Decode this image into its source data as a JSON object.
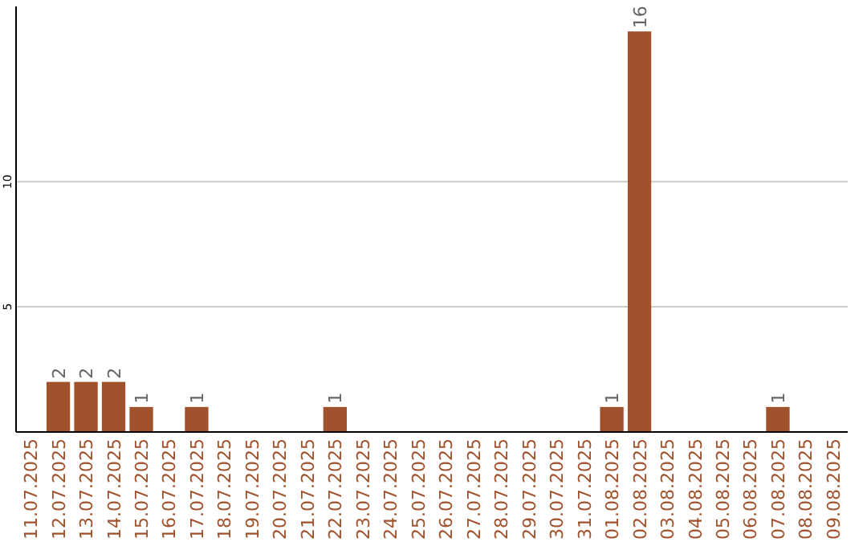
{
  "chart_data": {
    "type": "bar",
    "categories": [
      "11.07.2025",
      "12.07.2025",
      "13.07.2025",
      "14.07.2025",
      "15.07.2025",
      "16.07.2025",
      "17.07.2025",
      "18.07.2025",
      "19.07.2025",
      "20.07.2025",
      "21.07.2025",
      "22.07.2025",
      "23.07.2025",
      "24.07.2025",
      "25.07.2025",
      "26.07.2025",
      "27.07.2025",
      "28.07.2025",
      "29.07.2025",
      "30.07.2025",
      "31.07.2025",
      "01.08.2025",
      "02.08.2025",
      "03.08.2025",
      "04.08.2025",
      "05.08.2025",
      "06.08.2025",
      "07.08.2025",
      "08.08.2025",
      "09.08.2025"
    ],
    "values": [
      0,
      2,
      2,
      2,
      1,
      0,
      1,
      0,
      0,
      0,
      0,
      1,
      0,
      0,
      0,
      0,
      0,
      0,
      0,
      0,
      0,
      1,
      16,
      0,
      0,
      0,
      0,
      1,
      0,
      0
    ],
    "value_labels": [
      null,
      "2",
      "2",
      "2",
      "1",
      null,
      "1",
      null,
      null,
      null,
      null,
      "1",
      null,
      null,
      null,
      null,
      null,
      null,
      null,
      null,
      null,
      "1",
      "16",
      null,
      null,
      null,
      null,
      "1",
      null,
      null
    ],
    "color": "#a0522d",
    "ylim": [
      0,
      17
    ],
    "yticks": [
      5,
      10
    ],
    "grid": "y"
  }
}
